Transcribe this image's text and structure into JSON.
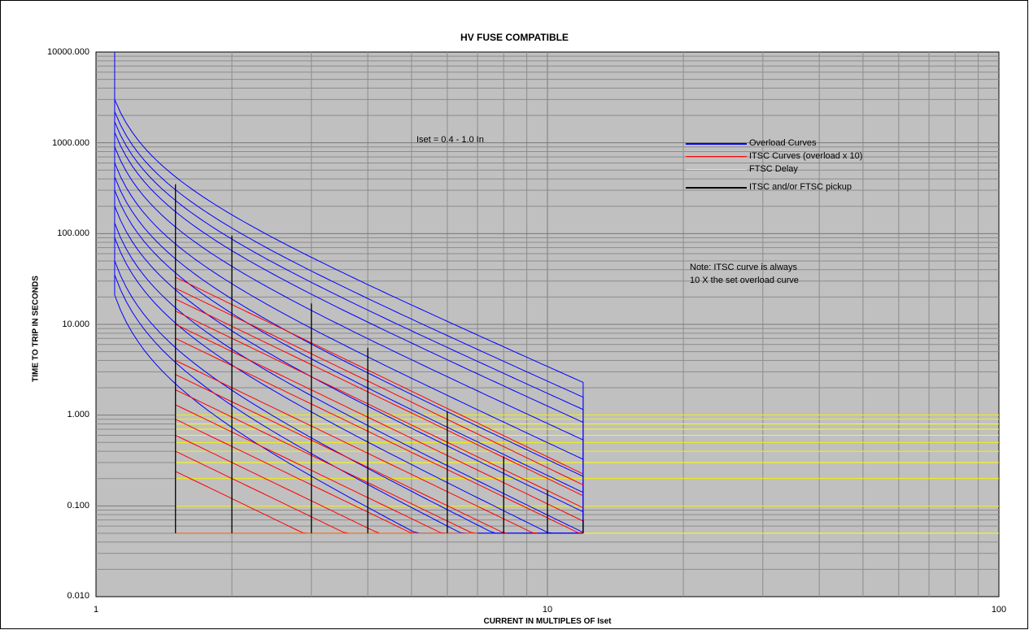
{
  "chart_data": {
    "type": "line",
    "title": "HV FUSE COMPATIBLE",
    "xlabel": "CURRENT IN MULTIPLES OF Iset",
    "ylabel": "TIME TO TRIP IN SECONDS",
    "xscale": "log",
    "yscale": "log",
    "xlim": [
      1,
      100
    ],
    "ylim": [
      0.01,
      10000
    ],
    "x_ticks": [
      "1",
      "10",
      "100"
    ],
    "y_ticks": [
      "0.010",
      "0.100",
      "1.000",
      "10.000",
      "100.000",
      "1000.000",
      "10000.000"
    ],
    "grid": true,
    "legend_position": "top-right",
    "annotations": {
      "iset": "Iset = 0.4 - 1.0 In",
      "note_line1": "Note: ITSC curve is always",
      "note_line2": "10 X the set overload curve"
    },
    "legend": [
      {
        "label": "Overload Curves",
        "color": "#0000ff"
      },
      {
        "label": "ITSC Curves (overload x 10)",
        "color": "#ff0000"
      },
      {
        "label": "FTSC Delay",
        "color": "#ffff00"
      },
      {
        "label": "ITSC and/or FTSC pickup",
        "color": "#000000"
      }
    ],
    "overload_curves": {
      "color": "#0000ff",
      "start_x": 1.1,
      "end_x": 12,
      "floor_time": 0.05,
      "time_at_1_1": [
        3000,
        2200,
        1700,
        1300,
        900,
        600,
        420,
        300,
        200,
        130,
        90,
        50,
        35,
        21
      ]
    },
    "itsc_curves": {
      "color": "#ff0000",
      "start_x": 1.5,
      "floor_time": 0.05,
      "time_at_1_5": [
        33,
        25,
        19,
        14,
        10,
        7,
        4,
        2.8,
        1.9,
        1.3,
        0.9,
        0.6,
        0.4,
        0.24
      ]
    },
    "ftsc_delay": {
      "color": "#ffff00",
      "start_x": 1.5,
      "end_x": 100,
      "times": [
        1.0,
        0.9,
        0.8,
        0.7,
        0.6,
        0.5,
        0.4,
        0.3,
        0.2,
        0.1,
        0.05
      ]
    },
    "pickup_lines": {
      "color": "#000000",
      "bottom_time": 0.05,
      "lines": [
        {
          "x": 1.5,
          "top": 350
        },
        {
          "x": 2,
          "top": 95
        },
        {
          "x": 3,
          "top": 17
        },
        {
          "x": 4,
          "top": 5.5
        },
        {
          "x": 6,
          "top": 1.1
        },
        {
          "x": 8,
          "top": 0.35
        },
        {
          "x": 10,
          "top": 0.15
        },
        {
          "x": 12,
          "top": 0.07
        }
      ]
    }
  }
}
